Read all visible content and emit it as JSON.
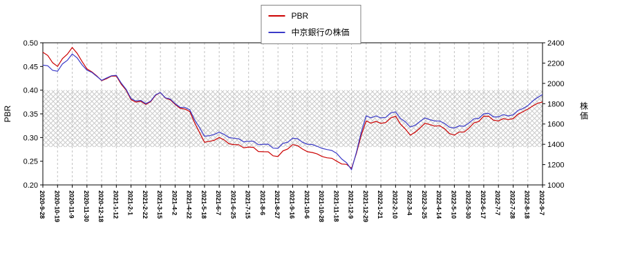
{
  "legend": {
    "items": [
      {
        "label": "PBR",
        "color": "#cc0000"
      },
      {
        "label": "中京銀行の株価",
        "color": "#3a3ac8"
      }
    ]
  },
  "axes": {
    "left_label": "PBR",
    "right_label": "株価",
    "left_ticks": [
      "0.50",
      "0.45",
      "0.40",
      "0.35",
      "0.30",
      "0.25",
      "0.20"
    ],
    "right_ticks": [
      "2400",
      "2200",
      "2000",
      "1800",
      "1600",
      "1400",
      "1200",
      "1000"
    ]
  },
  "chart_data": {
    "type": "line",
    "title": "",
    "grid": "vertical-dashed",
    "legend_position": "top-center",
    "left_ylim": [
      0.2,
      0.5
    ],
    "right_ylim": [
      1000,
      2400
    ],
    "hatch_band_left_axis": [
      0.28,
      0.4
    ],
    "categories": [
      "2020-9-28",
      "2020-10-19",
      "2020-11-9",
      "2020-11-30",
      "2020-12-18",
      "2021-1-12",
      "2021-2-1",
      "2021-2-22",
      "2021-3-15",
      "2021-4-2",
      "2021-4-22",
      "2021-5-18",
      "2021-6-7",
      "2021-6-25",
      "2021-7-15",
      "2021-8-6",
      "2021-8-27",
      "2021-9-16",
      "2021-10-6",
      "2021-10-28",
      "2021-11-18",
      "2021-12-9",
      "2021-12-29",
      "2022-1-21",
      "2022-2-10",
      "2022-3-4",
      "2022-3-25",
      "2022-4-14",
      "2022-5-10",
      "2022-5-30",
      "2022-6-17",
      "2022-7-7",
      "2022-7-28",
      "2022-8-18",
      "2022-9-7"
    ],
    "series": [
      {
        "name": "PBR",
        "axis": "left",
        "color": "#cc0000",
        "values": [
          0.48,
          0.45,
          0.49,
          0.445,
          0.42,
          0.43,
          0.38,
          0.37,
          0.395,
          0.37,
          0.355,
          0.29,
          0.3,
          0.285,
          0.28,
          0.27,
          0.26,
          0.285,
          0.27,
          0.26,
          0.25,
          0.235,
          0.335,
          0.33,
          0.345,
          0.305,
          0.33,
          0.325,
          0.305,
          0.32,
          0.345,
          0.335,
          0.34,
          0.36,
          0.375
        ]
      },
      {
        "name": "中京銀行の株価",
        "axis": "right",
        "color": "#3a3ac8",
        "values": [
          2180,
          2120,
          2290,
          2130,
          2030,
          2080,
          1850,
          1800,
          1910,
          1800,
          1740,
          1480,
          1520,
          1460,
          1430,
          1400,
          1360,
          1460,
          1400,
          1360,
          1310,
          1150,
          1680,
          1660,
          1720,
          1570,
          1660,
          1630,
          1560,
          1610,
          1700,
          1670,
          1690,
          1780,
          1890
        ]
      }
    ]
  }
}
